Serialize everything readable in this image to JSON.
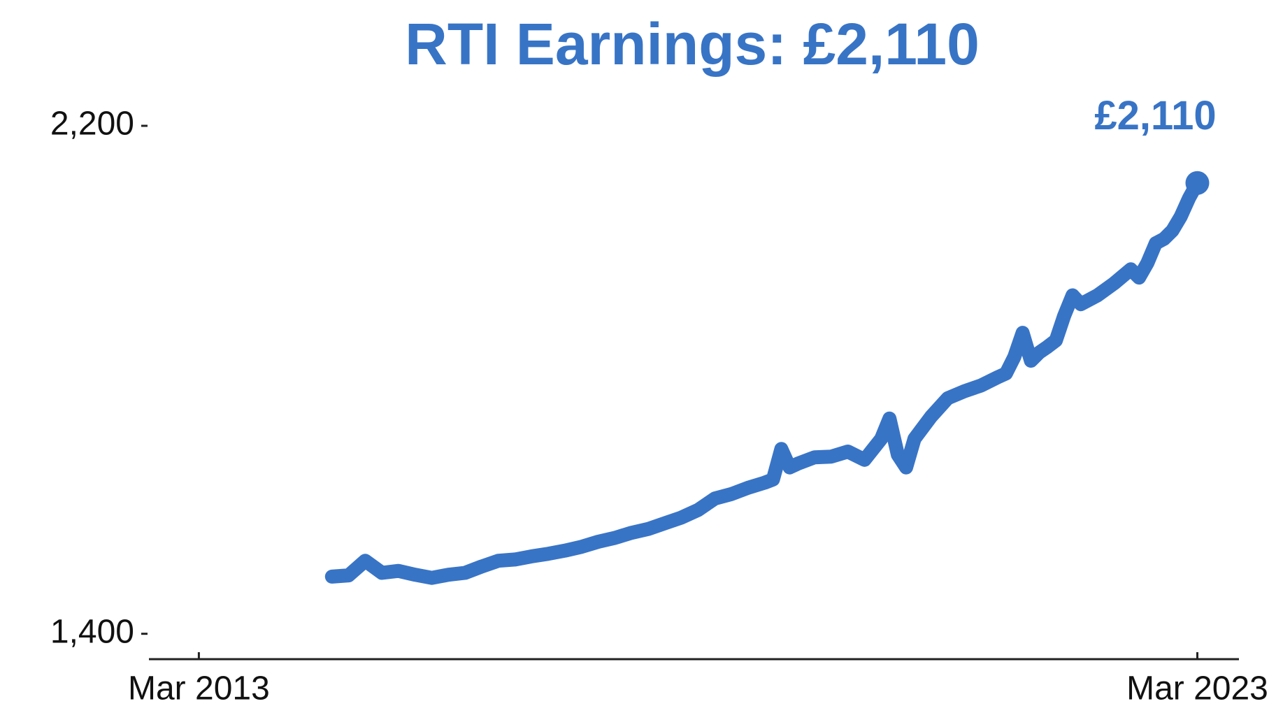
{
  "chart_data": {
    "type": "line",
    "title": "RTI Earnings: £2,110",
    "end_label": "£2,110",
    "color": "#3874c6",
    "xlim": [
      "2012-09",
      "2023-08"
    ],
    "xticks": [
      {
        "value": "2013-03",
        "label": "Mar 2013"
      },
      {
        "value": "2023-03",
        "label": "Mar 2023"
      }
    ],
    "ylim": [
      1360,
      2200
    ],
    "yticks": [
      {
        "value": 1400,
        "label": "1,400"
      },
      {
        "value": 2200,
        "label": "2,200"
      }
    ],
    "grid": false,
    "x": [
      "2014-07",
      "2014-09",
      "2014-11",
      "2015-01",
      "2015-03",
      "2015-05",
      "2015-07",
      "2015-09",
      "2015-11",
      "2016-01",
      "2016-03",
      "2016-05",
      "2016-07",
      "2016-09",
      "2016-11",
      "2017-01",
      "2017-03",
      "2017-05",
      "2017-07",
      "2017-09",
      "2017-11",
      "2018-01",
      "2018-03",
      "2018-05",
      "2018-07",
      "2018-09",
      "2018-11",
      "2018-12",
      "2019-01",
      "2019-02",
      "2019-03",
      "2019-05",
      "2019-07",
      "2019-09",
      "2019-11",
      "2020-01",
      "2020-02",
      "2020-03",
      "2020-04",
      "2020-05",
      "2020-07",
      "2020-09",
      "2020-11",
      "2021-01",
      "2021-03",
      "2021-04",
      "2021-05",
      "2021-06",
      "2021-07",
      "2021-08",
      "2021-09",
      "2021-10",
      "2021-11",
      "2021-12",
      "2022-01",
      "2022-03",
      "2022-05",
      "2022-07",
      "2022-08",
      "2022-09",
      "2022-10",
      "2022-11",
      "2022-12",
      "2023-01",
      "2023-02",
      "2023-03"
    ],
    "series": [
      {
        "name": "RTI Earnings",
        "color": "#3874c6",
        "values": [
          1490,
          1492,
          1515,
          1496,
          1499,
          1493,
          1488,
          1493,
          1496,
          1506,
          1515,
          1517,
          1522,
          1526,
          1531,
          1537,
          1545,
          1551,
          1559,
          1565,
          1574,
          1583,
          1595,
          1613,
          1620,
          1630,
          1638,
          1643,
          1691,
          1662,
          1668,
          1678,
          1679,
          1687,
          1674,
          1707,
          1739,
          1682,
          1662,
          1707,
          1742,
          1771,
          1782,
          1791,
          1804,
          1810,
          1836,
          1874,
          1830,
          1843,
          1852,
          1862,
          1901,
          1933,
          1919,
          1933,
          1952,
          1974,
          1961,
          1984,
          2015,
          2022,
          2035,
          2057,
          2086,
          2110
        ]
      }
    ]
  }
}
